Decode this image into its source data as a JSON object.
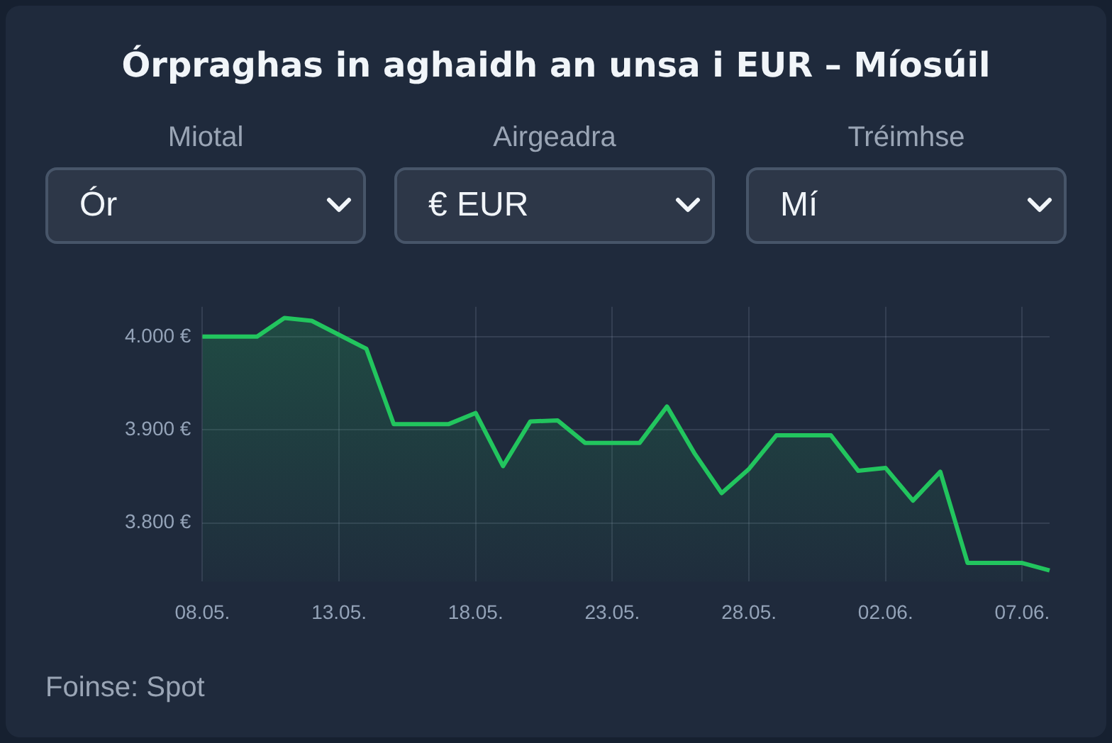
{
  "chart_data": {
    "type": "area",
    "title": "Órpraghas in aghaidh an unsa i EUR – Míosúil",
    "annotations": [
      "Miotal",
      "Ór",
      "Airgeadra",
      "€ EUR",
      "Tréimhse",
      "Mí",
      "Foinse: Spot"
    ],
    "categories": [
      "08.05.",
      null,
      null,
      null,
      null,
      "13.05.",
      null,
      null,
      null,
      null,
      "18.05.",
      null,
      null,
      null,
      null,
      "23.05.",
      null,
      null,
      null,
      null,
      "28.05.",
      null,
      null,
      null,
      null,
      "02.06.",
      null,
      null,
      null,
      null,
      "07.06.",
      null
    ],
    "series": [
      {
        "color": "#22c55e",
        "values": [
          4000,
          4000,
          4000,
          4020,
          4017,
          4002,
          3987,
          3906,
          3906,
          3906,
          3918,
          3861,
          3909,
          3910,
          3886,
          3886,
          3886,
          3925,
          3875,
          3832,
          3858,
          3894,
          3894,
          3894,
          3856,
          3859,
          3824,
          3855,
          3757,
          3757,
          3757,
          3749
        ]
      }
    ],
    "ylim": [
      3737,
      4032
    ],
    "yticks": [
      {
        "value": 3800,
        "label": "3.800 €"
      },
      {
        "value": 3900,
        "label": "3.900 €"
      },
      {
        "value": 4000,
        "label": "4.000 €"
      }
    ],
    "grid": true,
    "legend": false,
    "marker": "none",
    "line_style": "solid"
  }
}
